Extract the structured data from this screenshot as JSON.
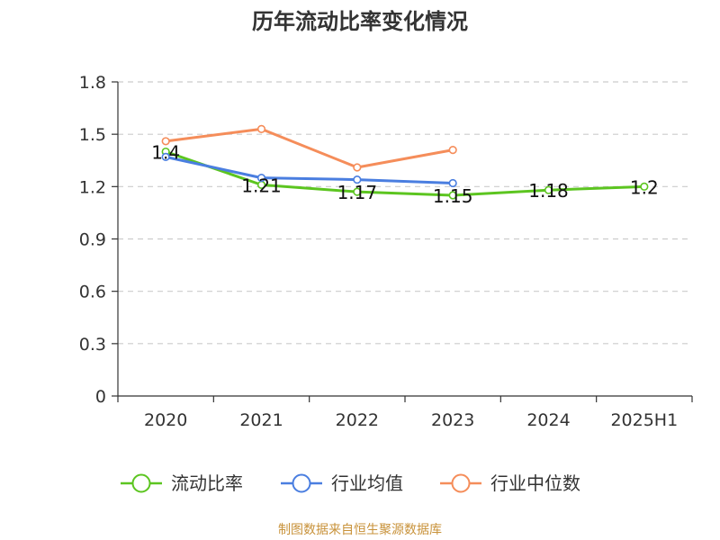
{
  "title": "历年流动比率变化情况",
  "source": "制图数据来自恒生聚源数据库",
  "chart_data": {
    "type": "line",
    "title": "历年流动比率变化情况",
    "categories": [
      "2020",
      "2021",
      "2022",
      "2023",
      "2024",
      "2025H1"
    ],
    "ylim": [
      0,
      1.8
    ],
    "yticks": [
      0,
      0.3,
      0.6,
      0.9,
      1.2,
      1.5,
      1.8
    ],
    "ytick_labels": [
      "0",
      "0.3",
      "0.6",
      "0.9",
      "1.2",
      "1.5",
      "1.8"
    ],
    "grid": true,
    "legend_position": "bottom",
    "series": [
      {
        "name": "流动比率",
        "color": "#5cc520",
        "values": [
          1.4,
          1.21,
          1.17,
          1.15,
          1.18,
          1.2
        ],
        "labels": [
          "1.4",
          "1.21",
          "1.17",
          "1.15",
          "1.18",
          "1.2"
        ]
      },
      {
        "name": "行业均值",
        "color": "#4a7ee0",
        "values": [
          1.37,
          1.25,
          1.24,
          1.22,
          null,
          null
        ]
      },
      {
        "name": "行业中位数",
        "color": "#f58d5a",
        "values": [
          1.46,
          1.53,
          1.31,
          1.41,
          null,
          null
        ]
      }
    ]
  }
}
